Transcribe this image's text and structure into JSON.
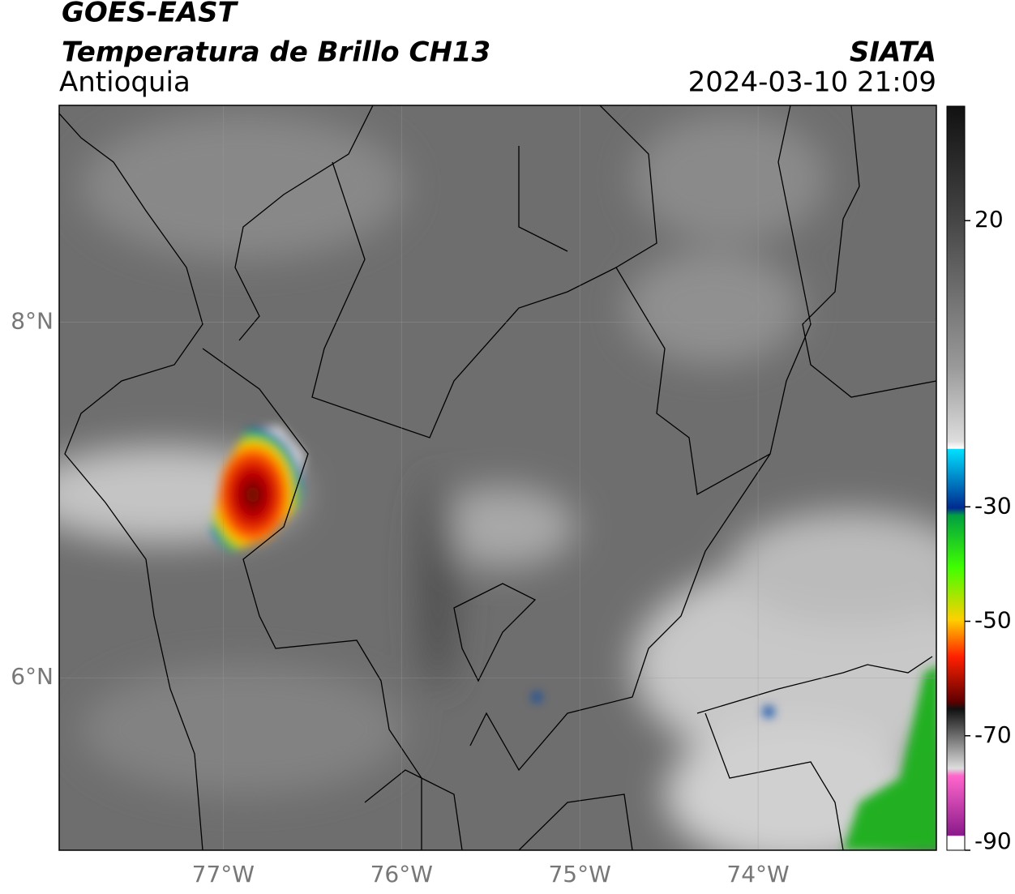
{
  "header": {
    "satellite": "GOES-EAST",
    "product": "Temperatura de Brillo CH13",
    "region": "Antioquia",
    "source": "SIATA",
    "datetime": "2024-03-10 21:09"
  },
  "map": {
    "xlim": [
      -77.92,
      -73.0
    ],
    "ylim": [
      5.03,
      9.22
    ],
    "xticks": [
      {
        "value": -77,
        "label": "77°W"
      },
      {
        "value": -76,
        "label": "76°W"
      },
      {
        "value": -75,
        "label": "75°W"
      },
      {
        "value": -74,
        "label": "74°W"
      }
    ],
    "yticks": [
      {
        "value": 8,
        "label": "8°N"
      },
      {
        "value": 6,
        "label": "6°N"
      }
    ]
  },
  "colorbar": {
    "lim": [
      -90,
      40
    ],
    "ticks": [
      20,
      -30,
      -50,
      -70,
      -90
    ]
  }
}
